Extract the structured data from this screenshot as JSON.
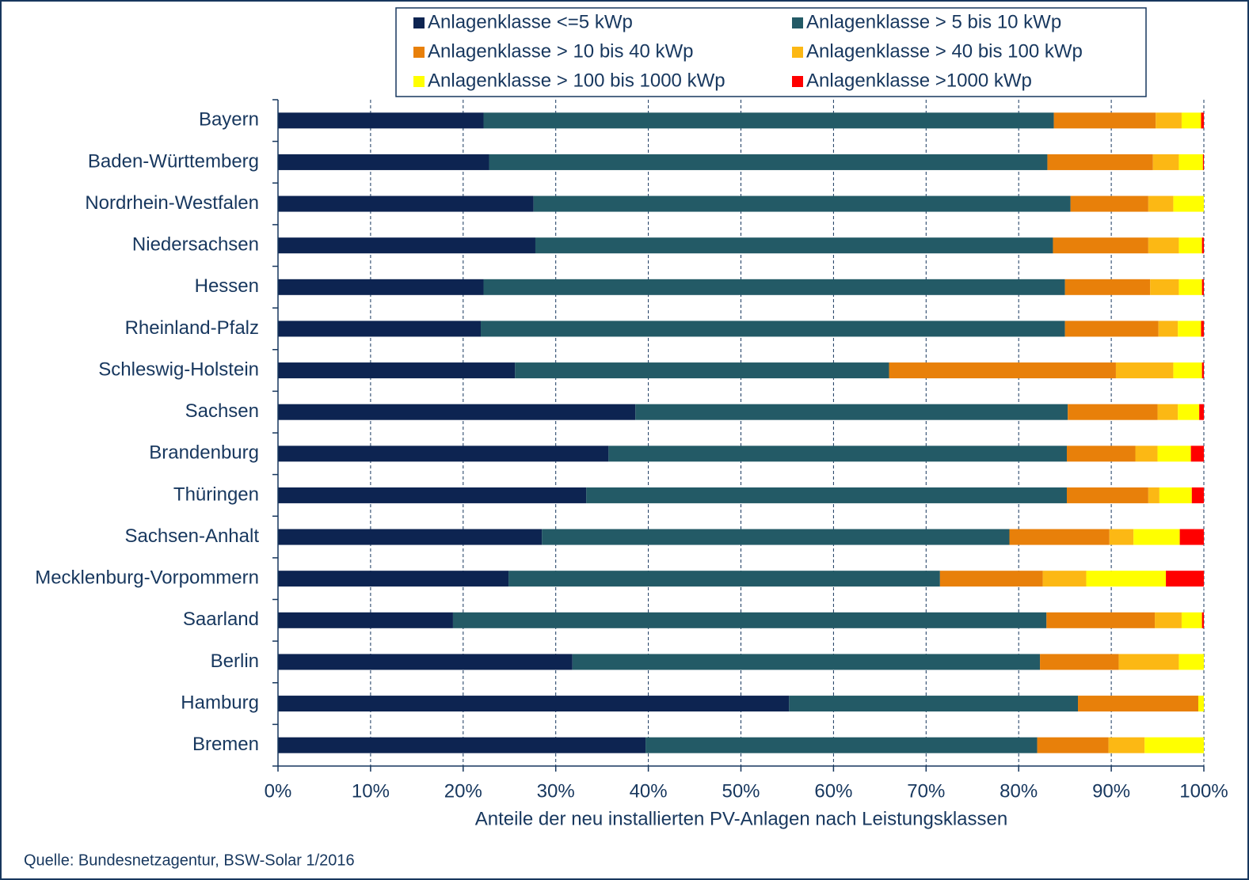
{
  "chart_data": {
    "type": "stacked_barh",
    "x_label": "Anteile der neu installierten PV-Anlagen nach Leistungsklassen",
    "source": "Quelle: Bundesnetzagentur, BSW-Solar 1/2016",
    "categories": [
      "Bayern",
      "Baden-Württemberg",
      "Nordrhein-Westfalen",
      "Niedersachsen",
      "Hessen",
      "Rheinland-Pfalz",
      "Schleswig-Holstein",
      "Sachsen",
      "Brandenburg",
      "Thüringen",
      "Sachsen-Anhalt",
      "Mecklenburg-Vorpommern",
      "Saarland",
      "Berlin",
      "Hamburg",
      "Bremen"
    ],
    "series": [
      {
        "name": "Anlagenklasse <=5 kWp",
        "color": "#0d2451",
        "values": [
          22.2,
          22.8,
          27.6,
          27.8,
          22.2,
          21.9,
          25.6,
          38.6,
          35.7,
          33.3,
          28.5,
          24.9,
          18.9,
          31.8,
          55.2,
          39.7
        ]
      },
      {
        "name": "Anlagenklasse > 5 bis 10 kWp",
        "color": "#235a66",
        "values": [
          61.6,
          60.3,
          58.0,
          55.9,
          62.8,
          63.1,
          40.4,
          46.7,
          49.5,
          51.9,
          50.5,
          46.6,
          64.1,
          50.5,
          31.2,
          42.3
        ]
      },
      {
        "name": "Anlagenklasse > 10 bis 40 kWp",
        "color": "#e8800a",
        "values": [
          11.0,
          11.4,
          8.4,
          10.3,
          9.2,
          10.1,
          24.5,
          9.7,
          7.4,
          8.8,
          10.8,
          11.1,
          11.7,
          8.5,
          13.0,
          7.7
        ]
      },
      {
        "name": "Anlagenklasse > 40 bis 100 kWp",
        "color": "#fcb814",
        "values": [
          2.8,
          2.8,
          2.7,
          3.3,
          3.1,
          2.1,
          6.2,
          2.2,
          2.4,
          1.2,
          2.6,
          4.7,
          2.9,
          6.5,
          0,
          3.9
        ]
      },
      {
        "name": "Anlagenklasse > 100 bis 1000 kWp",
        "color": "#ffff00",
        "values": [
          2.1,
          2.6,
          3.3,
          2.5,
          2.5,
          2.5,
          3.1,
          2.3,
          3.6,
          3.5,
          5.0,
          8.6,
          2.2,
          2.7,
          0.6,
          6.4
        ]
      },
      {
        "name": "Anlagenklasse >1000 kWp",
        "color": "#ff0000",
        "values": [
          0.3,
          0.1,
          0,
          0.2,
          0.2,
          0.3,
          0.2,
          0.5,
          1.4,
          1.3,
          2.6,
          4.1,
          0.2,
          0,
          0,
          0
        ]
      }
    ],
    "xlim": [
      0,
      100
    ],
    "xticks": [
      {
        "value": 0,
        "label": "0%"
      },
      {
        "value": 10,
        "label": "10%"
      },
      {
        "value": 20,
        "label": "20%"
      },
      {
        "value": 30,
        "label": "30%"
      },
      {
        "value": 40,
        "label": "40%"
      },
      {
        "value": 50,
        "label": "50%"
      },
      {
        "value": 60,
        "label": "60%"
      },
      {
        "value": 70,
        "label": "70%"
      },
      {
        "value": 80,
        "label": "80%"
      },
      {
        "value": 90,
        "label": "90%"
      },
      {
        "value": 100,
        "label": "100%"
      }
    ],
    "grid": true,
    "legend": "top"
  }
}
